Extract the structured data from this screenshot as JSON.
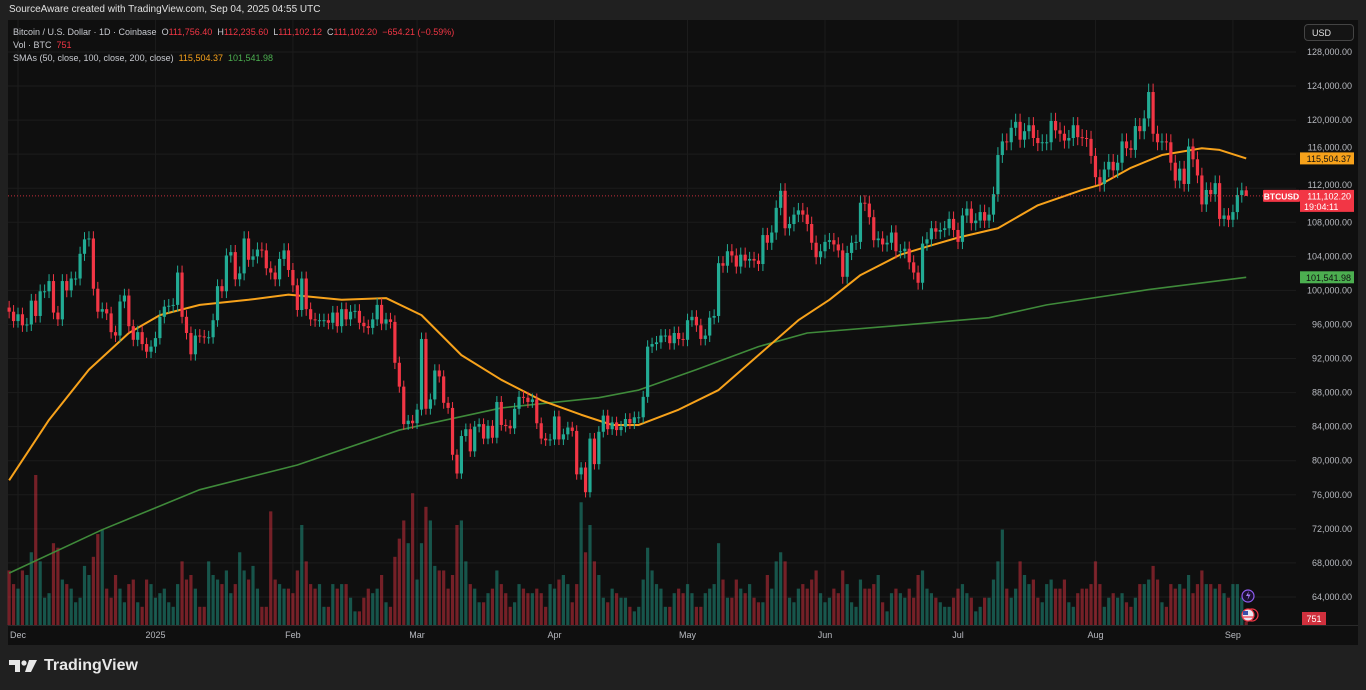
{
  "top_caption": "SourceAware created with TradingView.com, Sep 04, 2025 04:55 UTC",
  "legend": {
    "symbol": "Bitcoin / U.S. Dollar · 1D · Coinbase",
    "o_label": "O",
    "o": "111,756.40",
    "h_label": "H",
    "h": "112,235.60",
    "l_label": "L",
    "l": "111,102.12",
    "c_label": "C",
    "c": "111,102.20",
    "change": "−654.21 (−0.59%)",
    "vol_label": "Vol · BTC",
    "vol": "751",
    "sma_label": "SMAs (50, close, 100, close, 200, close)",
    "sma50": "115,504.37",
    "sma200": "101,541.98"
  },
  "currency_button": "USD",
  "price_labels": {
    "sma50": "115,504.37",
    "sma200": "101,541.98",
    "ticker": "BTCUSD",
    "last": "111,102.20",
    "countdown": "19:04:11",
    "volume": "751"
  },
  "footer_brand": "TradingView",
  "colors": {
    "up": "#22ab94",
    "down": "#f23645",
    "sma50": "#f7a21b",
    "sma200": "#3f8a3a",
    "background": "#0f0f0f"
  },
  "icons": [
    "lightning-event-icon",
    "us-flag-event-icon",
    "tradingview-logo-icon"
  ],
  "chart_data": {
    "type": "candlestick",
    "symbol": "BTCUSD",
    "interval": "1D",
    "ylim": [
      62000,
      129000
    ],
    "grid": true,
    "y_ticks": [
      "128,000.00",
      "124,000.00",
      "120,000.00",
      "116,000.00",
      "112,000.00",
      "108,000.00",
      "104,000.00",
      "100,000.00",
      "96,000.00",
      "92,000.00",
      "88,000.00",
      "84,000.00",
      "80,000.00",
      "76,000.00",
      "72,000.00",
      "68,000.00",
      "64,000.00"
    ],
    "x_ticks": [
      {
        "label": "Dec",
        "date": "2024-12-01"
      },
      {
        "label": "2025",
        "date": "2025-01-01"
      },
      {
        "label": "Feb",
        "date": "2025-02-01"
      },
      {
        "label": "Mar",
        "date": "2025-03-01"
      },
      {
        "label": "Apr",
        "date": "2025-04-01"
      },
      {
        "label": "May",
        "date": "2025-05-01"
      },
      {
        "label": "Jun",
        "date": "2025-06-01"
      },
      {
        "label": "Jul",
        "date": "2025-07-01"
      },
      {
        "label": "Aug",
        "date": "2025-08-01"
      },
      {
        "label": "Sep",
        "date": "2025-09-01"
      }
    ],
    "first_date": "2024-11-29",
    "close": [
      97500,
      96400,
      97200,
      95900,
      96000,
      98800,
      97000,
      99900,
      99900,
      101100,
      97400,
      96600,
      101100,
      100000,
      101400,
      101400,
      104300,
      106000,
      106100,
      100200,
      97500,
      97800,
      97300,
      95100,
      94700,
      98700,
      99400,
      95800,
      94200,
      95100,
      93700,
      92800,
      93400,
      94400,
      96900,
      98100,
      98200,
      98300,
      102100,
      96900,
      95000,
      92500,
      94700,
      94600,
      94500,
      94500,
      96500,
      100500,
      99900,
      104100,
      104500,
      101300,
      102000,
      106100,
      103600,
      104000,
      104800,
      104700,
      102600,
      102100,
      101300,
      103700,
      104700,
      102400,
      100600,
      97700,
      101400,
      97800,
      96600,
      96500,
      96500,
      96500,
      96200,
      97400,
      95800,
      97800,
      96600,
      97500,
      97600,
      96200,
      95800,
      95600,
      96600,
      98300,
      96100,
      96600,
      96300,
      91500,
      88700,
      84300,
      84700,
      84400,
      86000,
      94300,
      86100,
      87200,
      90600,
      89900,
      86800,
      86200,
      80700,
      78500,
      82900,
      83700,
      81100,
      84000,
      84300,
      82600,
      84100,
      82700,
      86900,
      84200,
      84100,
      83800,
      86100,
      87500,
      87400,
      86900,
      87200,
      84400,
      82600,
      82400,
      82500,
      85200,
      82500,
      83100,
      83900,
      83500,
      78400,
      79200,
      76300,
      82600,
      79600,
      83400,
      85300,
      83700,
      84500,
      83600,
      84000,
      84900,
      84400,
      85100,
      85100,
      87500,
      93400,
      93700,
      93900,
      94700,
      94700,
      93800,
      95000,
      94300,
      94200,
      96500,
      96900,
      95900,
      94300,
      94700,
      96800,
      97000,
      103200,
      102900,
      104600,
      104100,
      102800,
      104200,
      103500,
      103700,
      103500,
      103100,
      106500,
      105600,
      106800,
      109700,
      111700,
      107300,
      107800,
      108900,
      109400,
      108900,
      107800,
      105600,
      103900,
      104600,
      105700,
      105900,
      105400,
      104700,
      101600,
      104400,
      105600,
      105700,
      110300,
      110200,
      108600,
      105900,
      106100,
      105400,
      105600,
      106800,
      104600,
      104600,
      104900,
      103300,
      102100,
      100900,
      105500,
      106000,
      107300,
      106900,
      107100,
      107300,
      108400,
      107100,
      105700,
      108800,
      109600,
      107900,
      108200,
      109200,
      108200,
      108900,
      111300,
      115900,
      117500,
      117400,
      119100,
      119800,
      117700,
      118700,
      119400,
      117900,
      117300,
      117400,
      117400,
      119900,
      118800,
      118400,
      117600,
      117900,
      119400,
      118000,
      117900,
      117800,
      115800,
      113300,
      112500,
      114200,
      115100,
      114100,
      115000,
      117500,
      116700,
      116500,
      119300,
      118700,
      120200,
      123300,
      118400,
      117400,
      117500,
      117400,
      115000,
      112900,
      114300,
      112500,
      116900,
      115400,
      113500,
      110100,
      111800,
      111300,
      112600,
      108400,
      108800,
      108300,
      109200,
      111200,
      111756,
      111102
    ],
    "last_open": 111756.4,
    "last_high": 112235.6,
    "last_low": 111102.12,
    "volume_btc": [
      12000,
      9000,
      8000,
      12000,
      11000,
      16000,
      33000,
      14000,
      6000,
      7000,
      18000,
      17000,
      10000,
      9000,
      8000,
      5000,
      6000,
      13000,
      11000,
      15000,
      20000,
      21000,
      8000,
      6000,
      11000,
      8000,
      5000,
      9000,
      10000,
      5000,
      4000,
      10000,
      9000,
      6000,
      7000,
      8000,
      5000,
      4000,
      9000,
      14000,
      10000,
      11000,
      8000,
      4000,
      4000,
      14000,
      11000,
      10000,
      9000,
      12000,
      7000,
      9000,
      16000,
      12000,
      10000,
      13000,
      8000,
      4000,
      4000,
      25000,
      10000,
      9000,
      8000,
      8000,
      7000,
      12000,
      22000,
      14000,
      9000,
      8000,
      9000,
      4000,
      4000,
      9000,
      8000,
      9000,
      9000,
      6000,
      3000,
      3000,
      6000,
      8000,
      7000,
      8000,
      11000,
      5000,
      4000,
      15000,
      19000,
      23000,
      18000,
      29000,
      10000,
      18000,
      26000,
      23000,
      13000,
      12000,
      12000,
      8000,
      11000,
      22000,
      23000,
      14000,
      9000,
      8000,
      5000,
      5000,
      7000,
      8000,
      12000,
      9000,
      7000,
      4000,
      5000,
      9000,
      8000,
      7000,
      7000,
      8000,
      7000,
      4000,
      9000,
      8000,
      10000,
      11000,
      9000,
      5000,
      9000,
      27000,
      16000,
      22000,
      14000,
      11000,
      6000,
      5000,
      8000,
      7000,
      6000,
      6000,
      4000,
      3000,
      4000,
      10000,
      17000,
      12000,
      9000,
      8000,
      4000,
      4000,
      7000,
      8000,
      7000,
      9000,
      7000,
      4000,
      4000,
      7000,
      8000,
      9000,
      18000,
      10000,
      6000,
      6000,
      10000,
      8000,
      7000,
      9000,
      6000,
      5000,
      5000,
      11000,
      8000,
      14000,
      16000,
      14000,
      6000,
      5000,
      8000,
      9000,
      8000,
      10000,
      12000,
      7000,
      5000,
      6000,
      8000,
      7000,
      12000,
      9000,
      5000,
      4000,
      10000,
      8000,
      8000,
      9000,
      11000,
      5000,
      3000,
      7000,
      8000,
      7000,
      6000,
      8000,
      6000,
      11000,
      12000,
      8000,
      7000,
      6000,
      5000,
      4000,
      4000,
      6000,
      8000,
      9000,
      7000,
      6000,
      3000,
      4000,
      6000,
      6000,
      10000,
      14000,
      21000,
      8000,
      6000,
      8000,
      14000,
      11000,
      9000,
      10000,
      6000,
      5000,
      9000,
      10000,
      8000,
      8000,
      10000,
      5000,
      4000,
      7000,
      8000,
      8000,
      9000,
      14000,
      9000,
      4000,
      6000,
      7000,
      6000,
      7000,
      5000,
      4000,
      6000,
      9000,
      9000,
      10000,
      13000,
      10000,
      5000,
      4000,
      9000,
      8000,
      9000,
      8000,
      11000,
      7000,
      9000,
      12000,
      9000,
      9000,
      8000,
      9000,
      7000,
      6000,
      9000,
      9000,
      6000,
      751
    ],
    "sma50": [
      [
        "2024-11-29",
        77700
      ],
      [
        "2024-12-08",
        84800
      ],
      [
        "2024-12-17",
        90700
      ],
      [
        "2024-12-26",
        95000
      ],
      [
        "2025-01-02",
        97100
      ],
      [
        "2025-01-11",
        98300
      ],
      [
        "2025-01-22",
        98900
      ],
      [
        "2025-01-31",
        99500
      ],
      [
        "2025-02-12",
        98900
      ],
      [
        "2025-02-22",
        99100
      ],
      [
        "2025-03-02",
        97100
      ],
      [
        "2025-03-11",
        92400
      ],
      [
        "2025-03-20",
        89500
      ],
      [
        "2025-03-29",
        87100
      ],
      [
        "2025-04-07",
        85400
      ],
      [
        "2025-04-14",
        84200
      ],
      [
        "2025-04-20",
        84200
      ],
      [
        "2025-04-29",
        86000
      ],
      [
        "2025-05-08",
        88300
      ],
      [
        "2025-05-17",
        92400
      ],
      [
        "2025-05-26",
        96500
      ],
      [
        "2025-06-02",
        98900
      ],
      [
        "2025-06-09",
        101800
      ],
      [
        "2025-06-18",
        104200
      ],
      [
        "2025-06-25",
        105300
      ],
      [
        "2025-07-01",
        106200
      ],
      [
        "2025-07-10",
        107300
      ],
      [
        "2025-07-19",
        110000
      ],
      [
        "2025-07-29",
        111800
      ],
      [
        "2025-08-02",
        112400
      ],
      [
        "2025-08-09",
        114400
      ],
      [
        "2025-08-16",
        115900
      ],
      [
        "2025-08-25",
        116700
      ],
      [
        "2025-08-29",
        116500
      ],
      [
        "2025-09-04",
        115504.37
      ]
    ],
    "sma200": [
      [
        "2024-11-29",
        66800
      ],
      [
        "2024-12-20",
        71900
      ],
      [
        "2025-01-11",
        76600
      ],
      [
        "2025-02-02",
        79500
      ],
      [
        "2025-02-25",
        83600
      ],
      [
        "2025-03-20",
        86200
      ],
      [
        "2025-04-11",
        87400
      ],
      [
        "2025-04-20",
        88300
      ],
      [
        "2025-05-03",
        90700
      ],
      [
        "2025-05-17",
        93400
      ],
      [
        "2025-05-28",
        95000
      ],
      [
        "2025-06-18",
        95900
      ],
      [
        "2025-07-08",
        96800
      ],
      [
        "2025-07-21",
        98300
      ],
      [
        "2025-08-13",
        100100
      ],
      [
        "2025-09-04",
        101541.98
      ]
    ]
  }
}
